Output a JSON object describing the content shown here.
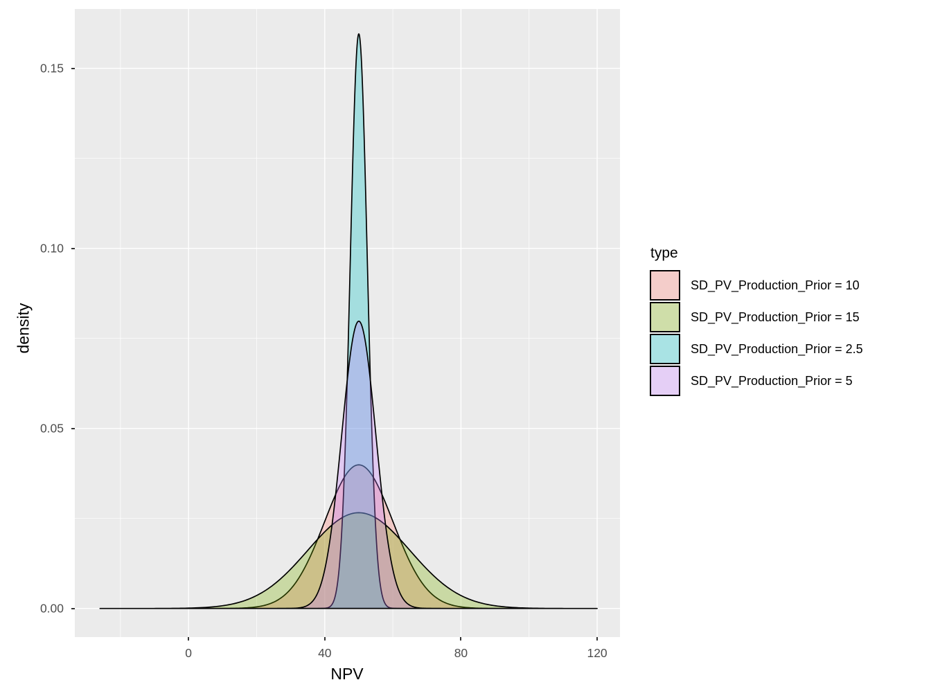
{
  "figure": {
    "background": "#FFFFFF",
    "panel_background": "#EBEBEB",
    "grid_major_color": "#FFFFFF",
    "grid_minor_color": "#FFFFFF",
    "tick_color": "#333333",
    "tick_label_color": "#4D4D4D"
  },
  "axes": {
    "x": {
      "title": "NPV",
      "tick_values": [
        0,
        40,
        80,
        120
      ],
      "tick_labels": [
        "0",
        "40",
        "80",
        "120"
      ],
      "minor_tick_values": [
        -20,
        20,
        60,
        100
      ],
      "lim": [
        -33.4,
        126.7
      ]
    },
    "y": {
      "title": "density",
      "tick_values": [
        0,
        0.05,
        0.1,
        0.15
      ],
      "tick_labels": [
        "0.00",
        "0.05",
        "0.10",
        "0.15"
      ],
      "minor_tick_values": [
        0.025,
        0.075,
        0.125
      ],
      "lim": [
        -0.00794,
        0.16648
      ]
    }
  },
  "legend": {
    "title": "type",
    "fill_alpha": 0.3,
    "key_background": "#F2F2F2",
    "outline_color": "#000000",
    "items": [
      {
        "label": "SD_PV_Production_Prior = 10",
        "fill": "#F8766D"
      },
      {
        "label": "SD_PV_Production_Prior = 15",
        "fill": "#7CAE00"
      },
      {
        "label": "SD_PV_Production_Prior = 2.5",
        "fill": "#00BFC4"
      },
      {
        "label": "SD_PV_Production_Prior = 5",
        "fill": "#C77CFF"
      }
    ]
  },
  "chart_data": {
    "type": "area",
    "subtype": "overlapping-density-curves",
    "title": "",
    "xlabel": "NPV",
    "ylabel": "density",
    "xlim": [
      -33.4,
      126.7
    ],
    "ylim": [
      -0.00794,
      0.16648
    ],
    "grid": "on",
    "legend_position": "right",
    "series": [
      {
        "name": "SD_PV_Production_Prior = 10",
        "distribution": "normal",
        "mean": 50,
        "sd": 10,
        "peak_density": 0.0399,
        "x_range": [
          3,
          97
        ],
        "fill": "#F8766D",
        "fill_alpha": 0.3,
        "outline": "#000000"
      },
      {
        "name": "SD_PV_Production_Prior = 15",
        "distribution": "normal",
        "mean": 50,
        "sd": 15,
        "peak_density": 0.0266,
        "x_range": [
          -26,
          120
        ],
        "fill": "#7CAE00",
        "fill_alpha": 0.3,
        "outline": "#000000"
      },
      {
        "name": "SD_PV_Production_Prior = 2.5",
        "distribution": "normal",
        "mean": 50,
        "sd": 2.5,
        "peak_density": 0.1596,
        "x_range": [
          38,
          62
        ],
        "fill": "#00BFC4",
        "fill_alpha": 0.3,
        "outline": "#000000"
      },
      {
        "name": "SD_PV_Production_Prior = 5",
        "distribution": "normal",
        "mean": 50,
        "sd": 5,
        "peak_density": 0.0798,
        "x_range": [
          26,
          74
        ],
        "fill": "#C77CFF",
        "fill_alpha": 0.3,
        "outline": "#000000"
      }
    ]
  }
}
